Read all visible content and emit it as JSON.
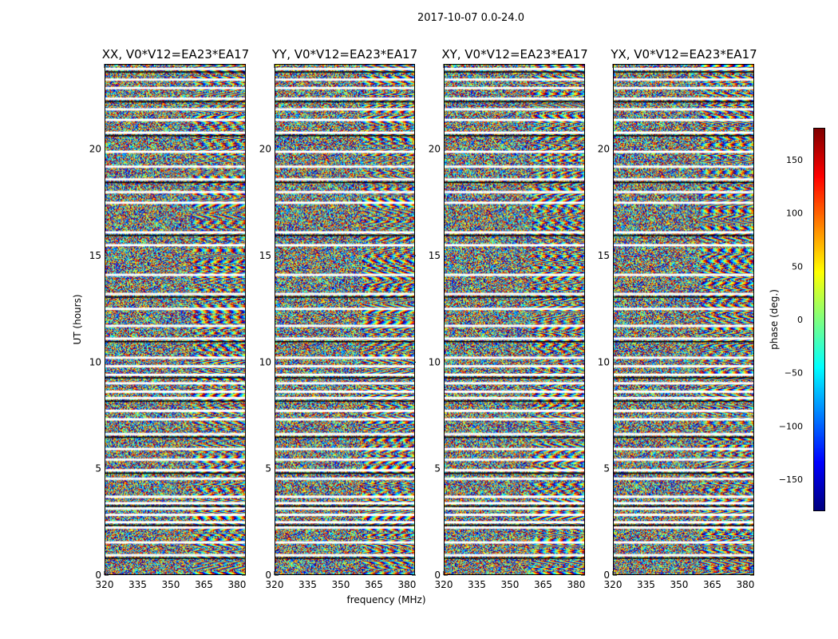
{
  "figure": {
    "suptitle": "2017-10-07 0.0-24.0"
  },
  "chart_data": {
    "type": "heatmap",
    "suptitle": "2017-10-07 0.0-24.0",
    "xlabel": "frequency (MHz)",
    "ylabel": "UT (hours)",
    "xlim": [
      320,
      384
    ],
    "ylim": [
      0,
      24
    ],
    "x_ticks": [
      320,
      335,
      350,
      365,
      380
    ],
    "y_ticks": [
      0,
      5,
      10,
      15,
      20
    ],
    "panels": [
      {
        "title": "XX, V0*V12=EA23*EA17"
      },
      {
        "title": "YY, V0*V12=EA23*EA17"
      },
      {
        "title": "XY, V0*V12=EA23*EA17"
      },
      {
        "title": "YX, V0*V12=EA23*EA17"
      }
    ],
    "colorbar": {
      "label": "phase (deg.)",
      "range": [
        -180,
        180
      ],
      "ticks": [
        150,
        100,
        50,
        0,
        -50,
        -100,
        -150
      ],
      "colormap": "jet"
    },
    "flagged_ut_hours": [
      0.9,
      1.5,
      2.2,
      2.45,
      2.8,
      3.1,
      3.35,
      3.65,
      4.5,
      4.9,
      5.4,
      5.9,
      6.6,
      7.3,
      7.7,
      8.3,
      8.6,
      9.0,
      9.4,
      9.8,
      10.2,
      11.1,
      11.7,
      12.5,
      13.2,
      14.1,
      15.5,
      16.1,
      17.5,
      18.0,
      18.6,
      19.2,
      19.9,
      20.8,
      21.4,
      21.9,
      22.4,
      22.9,
      23.3,
      23.8
    ]
  }
}
